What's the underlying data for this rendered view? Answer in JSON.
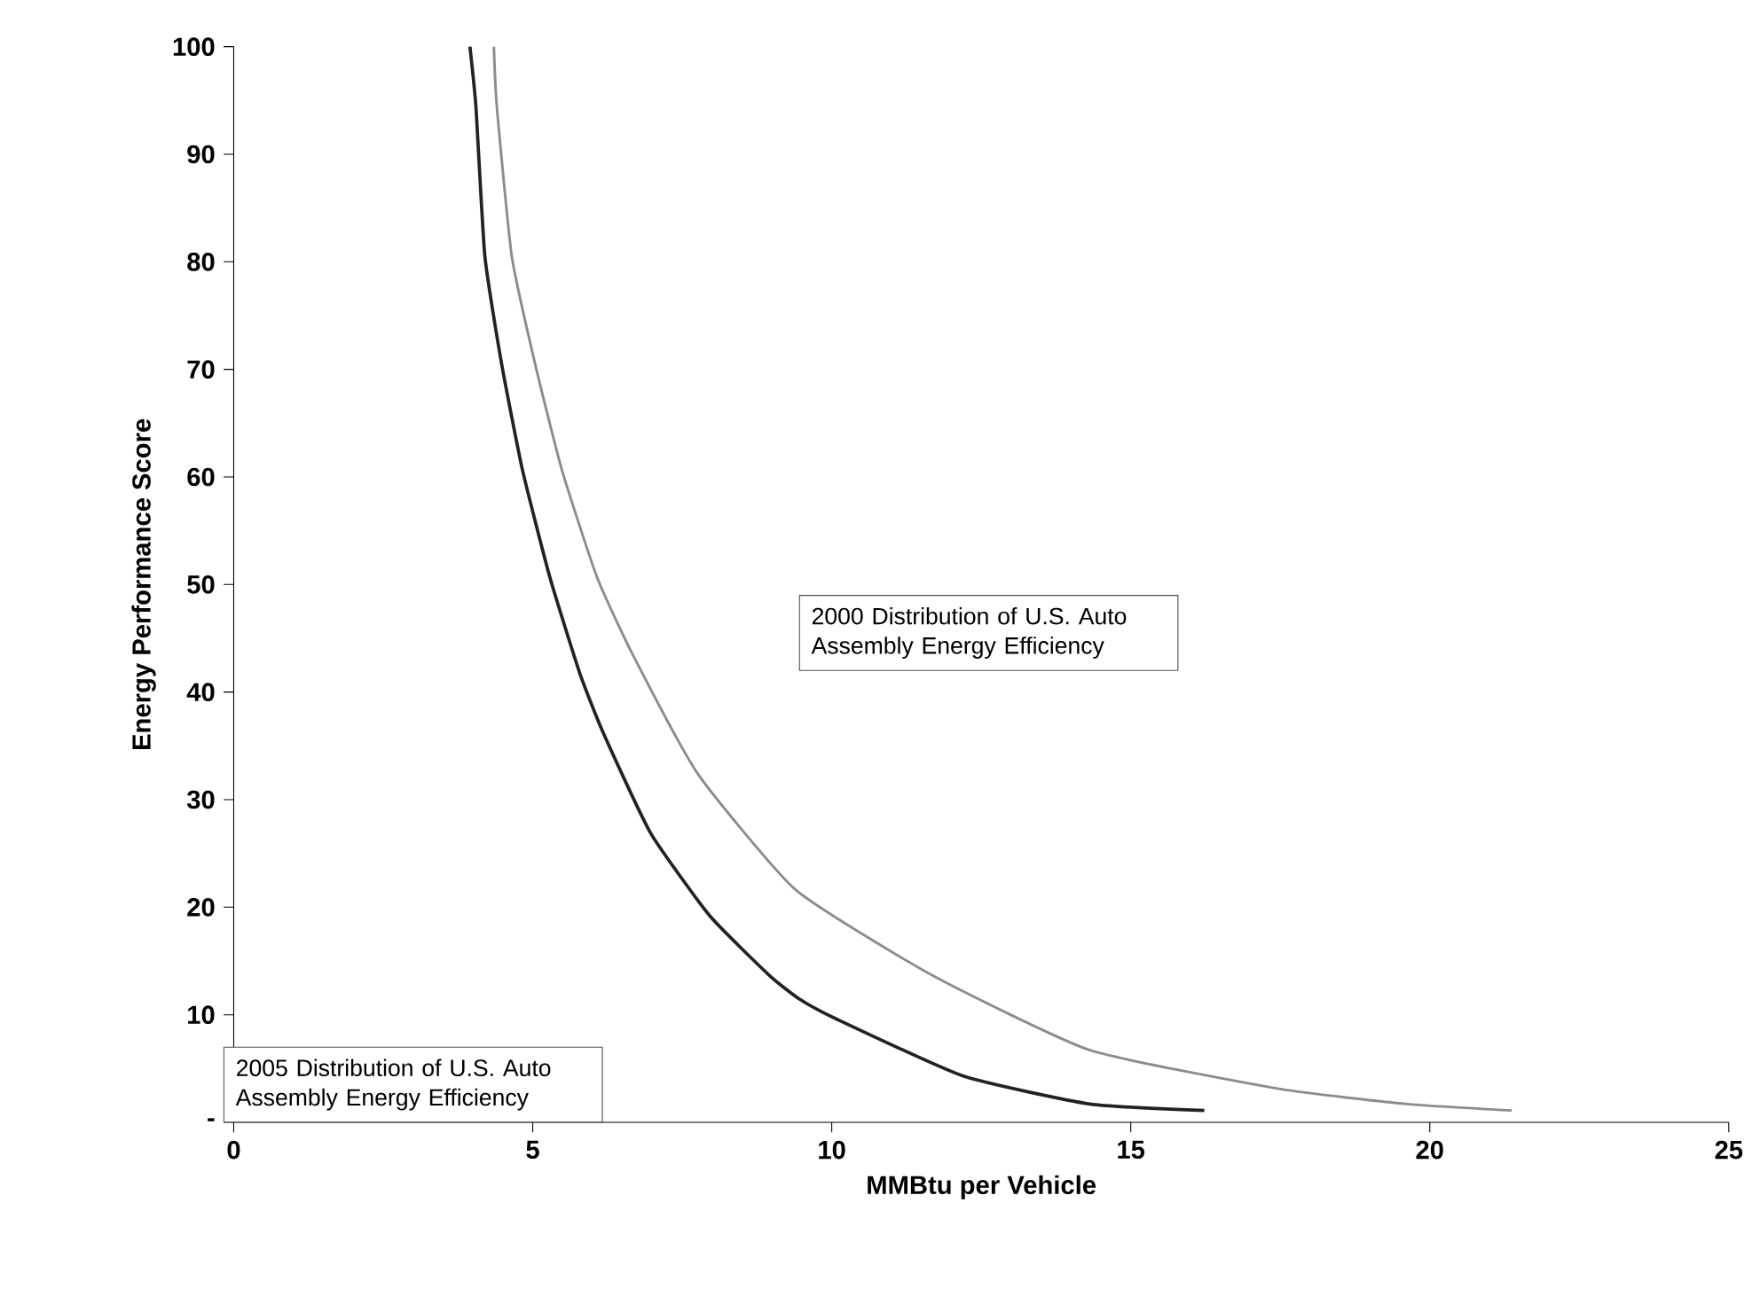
{
  "chart_data": {
    "type": "line",
    "xlabel": "MMBtu per Vehicle",
    "ylabel": "Energy Performance Score",
    "xlim": [
      0,
      25
    ],
    "ylim": [
      0,
      100
    ],
    "xticks": [
      0,
      5,
      10,
      15,
      20,
      25
    ],
    "yticks": [
      {
        "value": 0,
        "label": "-"
      },
      10,
      20,
      30,
      40,
      50,
      60,
      70,
      80,
      90,
      100
    ],
    "grid": false,
    "series": [
      {
        "color": "#222222",
        "x": [
          3.95,
          4.05,
          4.2,
          4.48,
          4.83,
          5.29,
          5.79,
          6.18,
          6.97,
          7.96,
          8.95,
          9.45,
          10.08,
          12.2,
          14.32,
          16.23
        ],
        "values": [
          100,
          94.4,
          80.5,
          70.5,
          60.6,
          50.6,
          41.7,
          36.2,
          26.9,
          19.2,
          13.7,
          11.5,
          9.6,
          4.3,
          1.7,
          1.1
        ]
      },
      {
        "color": "#8c8c8c",
        "x": [
          4.35,
          4.4,
          4.65,
          5.04,
          5.49,
          6.08,
          6.68,
          7.76,
          9.4,
          11.67,
          14.32,
          17.5,
          19.62,
          21.37
        ],
        "values": [
          100,
          94.4,
          80.5,
          70.5,
          60.6,
          50.6,
          43.4,
          32.4,
          21.6,
          13.7,
          6.7,
          3.1,
          1.7,
          1.1
        ]
      }
    ],
    "annotations": [
      "2000 Distribution of U.S. Auto Assembly Energy Efficiency",
      "2005 Distribution of U.S. Auto Assembly Energy Efficiency"
    ]
  }
}
